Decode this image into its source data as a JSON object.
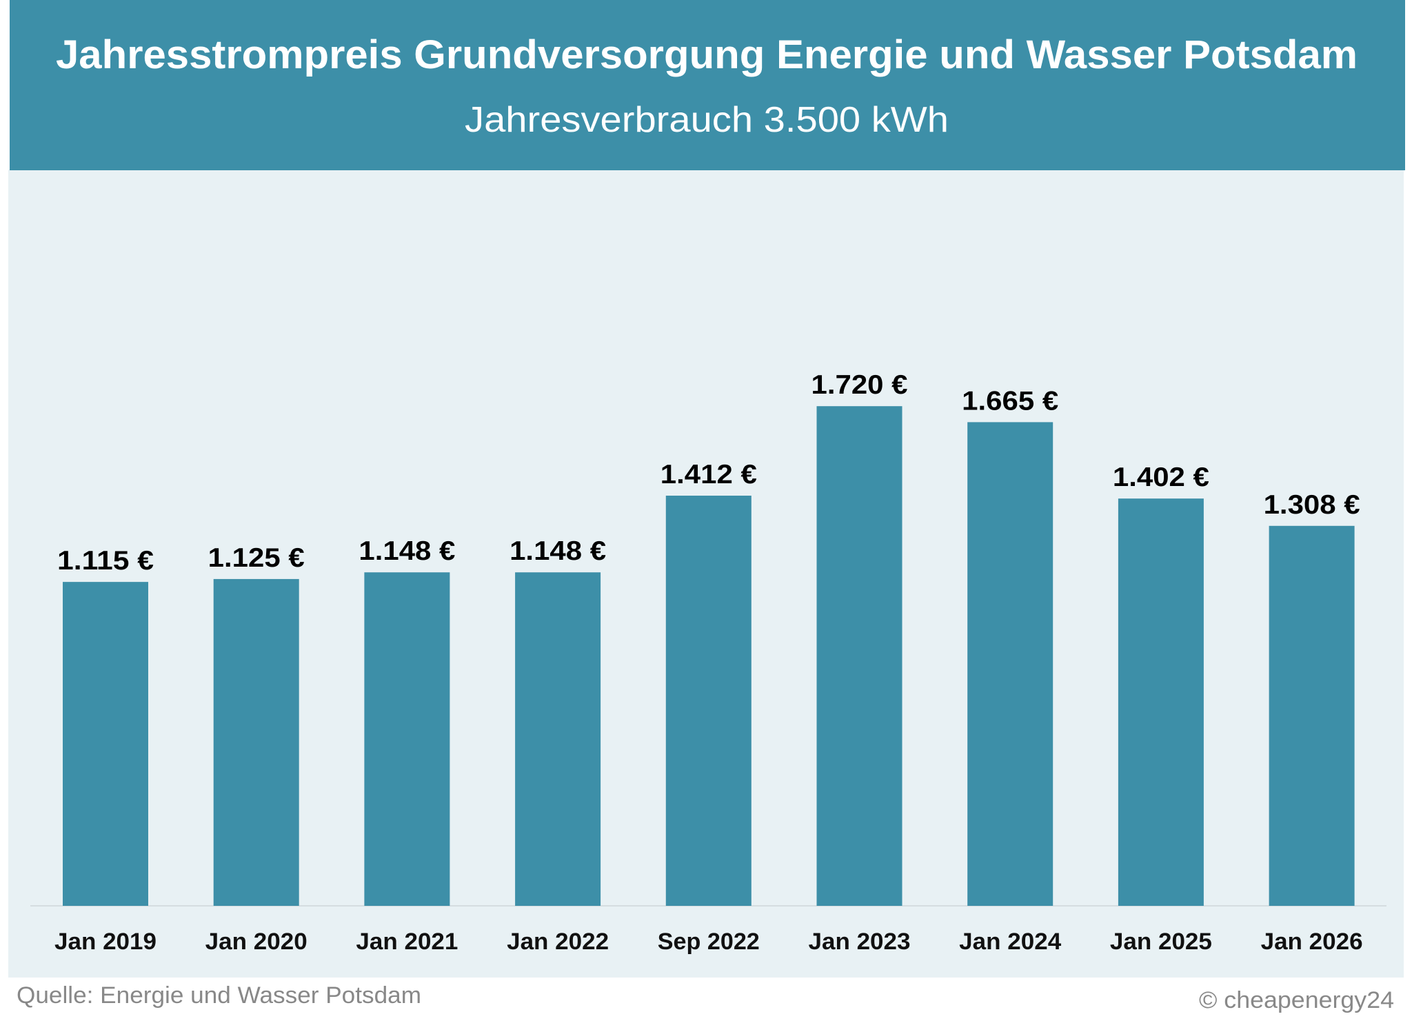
{
  "chart_data": {
    "type": "bar",
    "title": "Jahresstrompreis Grundversorgung Energie und Wasser Potsdam",
    "subtitle": "Jahresverbrauch 3.500 kWh",
    "categories": [
      "Jan 2019",
      "Jan 2020",
      "Jan 2021",
      "Jan 2022",
      "Sep 2022",
      "Jan 2023",
      "Jan 2024",
      "Jan 2025",
      "Jan 2026"
    ],
    "values": [
      1115,
      1125,
      1148,
      1148,
      1412,
      1720,
      1665,
      1402,
      1308
    ],
    "data_labels": [
      "1.115 €",
      "1.125 €",
      "1.148 €",
      "1.148 €",
      "1.412 €",
      "1.720 €",
      "1.665 €",
      "1.402 €",
      "1.308 €"
    ],
    "unit": "€",
    "ylim": [
      0,
      2400
    ],
    "grid": false,
    "y_axis_visible": false,
    "legend": "none",
    "source": "Quelle: Energie und Wasser Potsdam",
    "copyright": "© cheapenergy24",
    "colors": {
      "bar": "#3d8fa8",
      "header": "#3d8fa8",
      "plot_background": "#e8f1f4",
      "label": "#000000",
      "footer_text": "#888888"
    }
  }
}
